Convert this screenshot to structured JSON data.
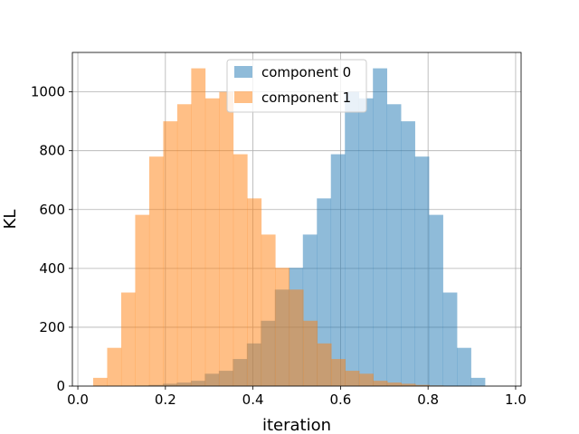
{
  "chart_data": {
    "type": "bar",
    "title": "",
    "xlabel": "iteration",
    "ylabel": "KL",
    "xlim": [
      -0.0125,
      1.0125
    ],
    "ylim": [
      0,
      1134
    ],
    "grid": true,
    "legend": {
      "placement": "top-center"
    },
    "xticks": [
      0.0,
      0.2,
      0.4,
      0.6,
      0.8,
      1.0
    ],
    "xtick_labels": [
      "0.0",
      "0.2",
      "0.4",
      "0.6",
      "0.8",
      "1.0"
    ],
    "yticks": [
      0,
      200,
      400,
      600,
      800,
      1000
    ],
    "ytick_labels": [
      "0",
      "200",
      "400",
      "600",
      "800",
      "1000"
    ],
    "series": [
      {
        "name": "component 0",
        "color": "#1f77b4",
        "alpha": 0.5,
        "bin_edges": [
          0.13,
          0.162,
          0.194,
          0.226,
          0.258,
          0.29,
          0.322,
          0.354,
          0.386,
          0.418,
          0.45,
          0.482,
          0.514,
          0.546,
          0.578,
          0.61,
          0.642,
          0.674,
          0.706,
          0.738,
          0.77,
          0.802,
          0.834,
          0.866,
          0.898,
          0.93,
          0.962
        ],
        "counts": [
          2,
          4,
          8,
          12,
          18,
          42,
          52,
          92,
          145,
          222,
          328,
          402,
          515,
          638,
          788,
          1000,
          978,
          1080,
          958,
          900,
          780,
          582,
          318,
          130,
          28,
          0
        ]
      },
      {
        "name": "component 1",
        "color": "#ff7f0e",
        "alpha": 0.5,
        "bin_edges": [
          0.035,
          0.067,
          0.099,
          0.131,
          0.163,
          0.195,
          0.227,
          0.259,
          0.291,
          0.323,
          0.355,
          0.387,
          0.419,
          0.451,
          0.483,
          0.515,
          0.547,
          0.579,
          0.611,
          0.643,
          0.675,
          0.707,
          0.739,
          0.771,
          0.803,
          0.835,
          0.867
        ],
        "counts": [
          28,
          130,
          318,
          582,
          780,
          900,
          958,
          1080,
          978,
          1000,
          788,
          638,
          515,
          402,
          328,
          222,
          145,
          92,
          52,
          42,
          18,
          12,
          8,
          4,
          2,
          0
        ]
      }
    ]
  }
}
